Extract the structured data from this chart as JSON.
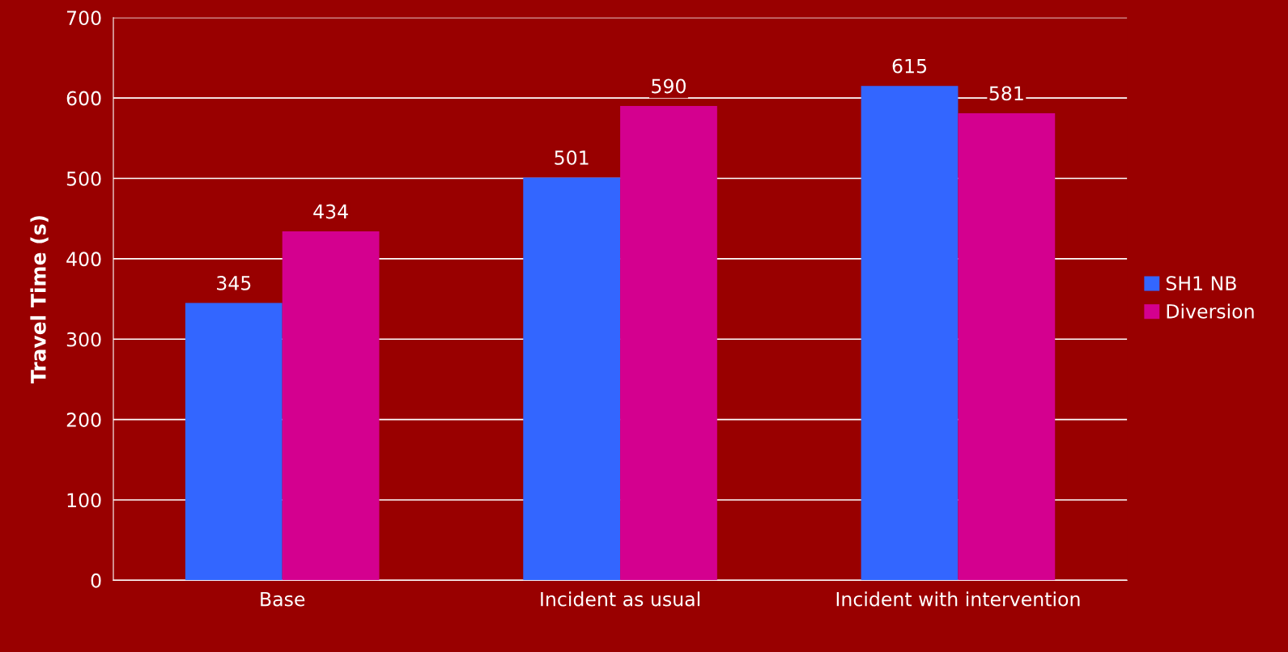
{
  "chart_data": {
    "type": "bar",
    "ylabel": "Travel Time (s)",
    "categories": [
      "Base",
      "Incident as usual",
      "Incident with intervention"
    ],
    "series": [
      {
        "name": "SH1 NB",
        "color": "#3366ff",
        "values": [
          345,
          501,
          615
        ]
      },
      {
        "name": "Diversion",
        "color": "#d4008f",
        "values": [
          434,
          590,
          581
        ]
      }
    ],
    "ylim": [
      0,
      700
    ],
    "yticks": [
      0,
      100,
      200,
      300,
      400,
      500,
      600,
      700
    ],
    "grid": "y",
    "legend": "right",
    "data_labels": true
  }
}
